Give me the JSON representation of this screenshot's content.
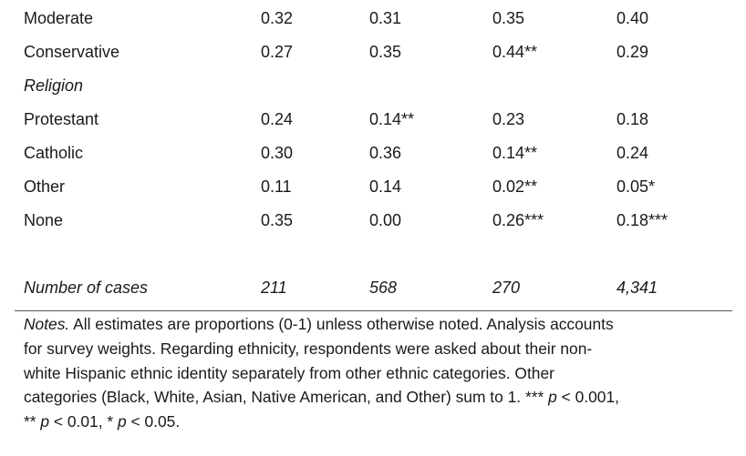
{
  "rows": [
    {
      "label": "Moderate",
      "values": [
        "0.32",
        "0.31",
        "0.35",
        "0.40"
      ]
    },
    {
      "label": "Conservative",
      "values": [
        "0.27",
        "0.35",
        "0.44**",
        "0.29"
      ]
    },
    {
      "label": "Religion",
      "values": []
    },
    {
      "label": "Protestant",
      "values": [
        "0.24",
        "0.14**",
        "0.23",
        "0.18"
      ]
    },
    {
      "label": "Catholic",
      "values": [
        "0.30",
        "0.36",
        "0.14**",
        "0.24"
      ]
    },
    {
      "label": "Other",
      "values": [
        "0.11",
        "0.14",
        "0.02**",
        "0.05*"
      ]
    },
    {
      "label": "None",
      "values": [
        "0.35",
        "0.00",
        "0.26***",
        "0.18***"
      ]
    }
  ],
  "cases": {
    "label": "Number of cases",
    "values": [
      "211",
      "568",
      "270",
      "4,341"
    ]
  },
  "notes": {
    "lead": "Notes.",
    "line1": " All estimates are proportions (0-1) unless otherwise noted. Analysis accounts",
    "line2": "for survey weights.  Regarding ethnicity, respondents were asked about their non-",
    "line3": "white Hispanic ethnic identity separately from other ethnic categories. Other",
    "line4a": "categories (Black, White, Asian, Native American, and Other) sum to 1. *** ",
    "p": "p",
    "line4b": " < 0.001,",
    "line5a": "** ",
    "line5b": " < 0.01, * ",
    "line5c": " < 0.05."
  }
}
